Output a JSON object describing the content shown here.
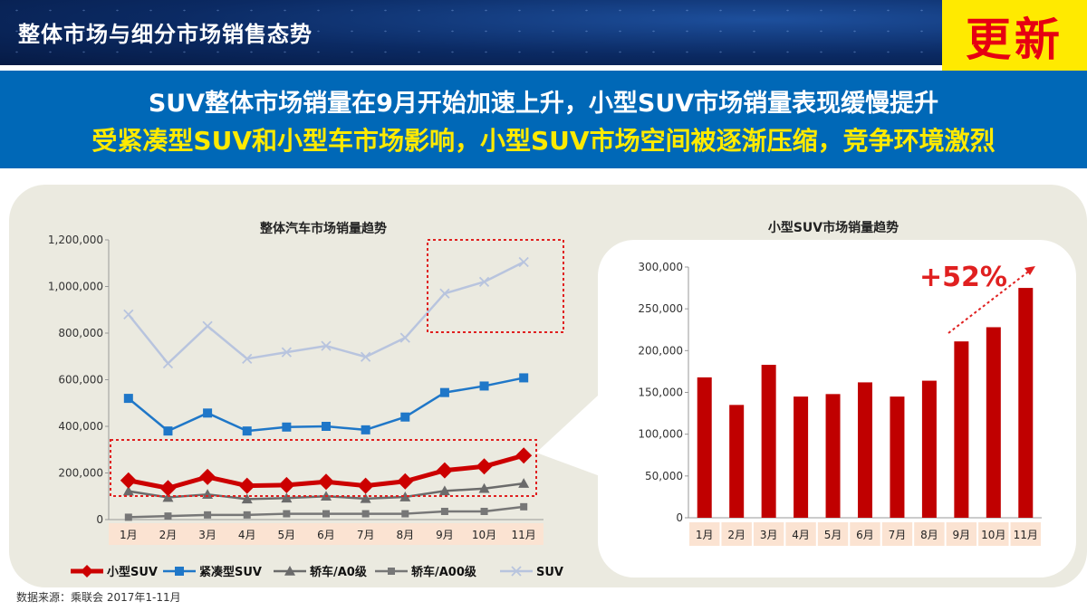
{
  "header": {
    "title": "整体市场与细分市场销售态势",
    "badge": "更新"
  },
  "banner": {
    "line1": "SUV整体市场销量在9月开始加速上升，小型SUV市场销量表现缓慢提升",
    "line2": "受紧凑型SUV和小型车市场影响，小型SUV市场空间被逐渐压缩，竞争环境激烈"
  },
  "source": "数据来源：乘联会 2017年1-11月",
  "colors": {
    "small_suv": "#cc0000",
    "compact_suv": "#1f77c8",
    "sedan_a0": "#6b6b6b",
    "sedan_a00": "#777777",
    "suv": "#b8c4de",
    "highlight_box": "#e02020",
    "month_bg": "#fbe3d2"
  },
  "chart_data": [
    {
      "type": "line",
      "title": "整体汽车市场销量趋势",
      "categories": [
        "1月",
        "2月",
        "3月",
        "4月",
        "5月",
        "6月",
        "7月",
        "8月",
        "9月",
        "10月",
        "11月"
      ],
      "yticks": [
        "0",
        "200,000",
        "400,000",
        "600,000",
        "800,000",
        "1,000,000",
        "1,200,000"
      ],
      "ylim": [
        0,
        1200000
      ],
      "grid": false,
      "legend": "bottom",
      "series": [
        {
          "name": "小型SUV",
          "values": [
            168000,
            135000,
            183000,
            145000,
            148000,
            162000,
            145000,
            164000,
            211000,
            228000,
            275000
          ]
        },
        {
          "name": "紧凑型SUV",
          "values": [
            520000,
            380000,
            457000,
            380000,
            397000,
            400000,
            385000,
            440000,
            545000,
            573000,
            608000
          ]
        },
        {
          "name": "轿车/A0级",
          "values": [
            122000,
            95000,
            108000,
            88000,
            92000,
            100000,
            90000,
            97000,
            123000,
            133000,
            155000
          ]
        },
        {
          "name": "轿车/A00级",
          "values": [
            10000,
            15000,
            20000,
            20000,
            25000,
            25000,
            25000,
            25000,
            35000,
            35000,
            55000
          ]
        },
        {
          "name": "SUV",
          "values": [
            880000,
            670000,
            830000,
            690000,
            718000,
            745000,
            698000,
            780000,
            970000,
            1020000,
            1105000
          ]
        }
      ]
    },
    {
      "type": "bar",
      "title": "小型SUV市场销量趋势",
      "categories": [
        "1月",
        "2月",
        "3月",
        "4月",
        "5月",
        "6月",
        "7月",
        "8月",
        "9月",
        "10月",
        "11月"
      ],
      "values": [
        168000,
        135000,
        183000,
        145000,
        148000,
        162000,
        145000,
        164000,
        211000,
        228000,
        275000
      ],
      "yticks": [
        "0",
        "50,000",
        "100,000",
        "150,000",
        "200,000",
        "250,000",
        "300,000"
      ],
      "ylim": [
        0,
        300000
      ],
      "annotation": "+52%"
    }
  ]
}
